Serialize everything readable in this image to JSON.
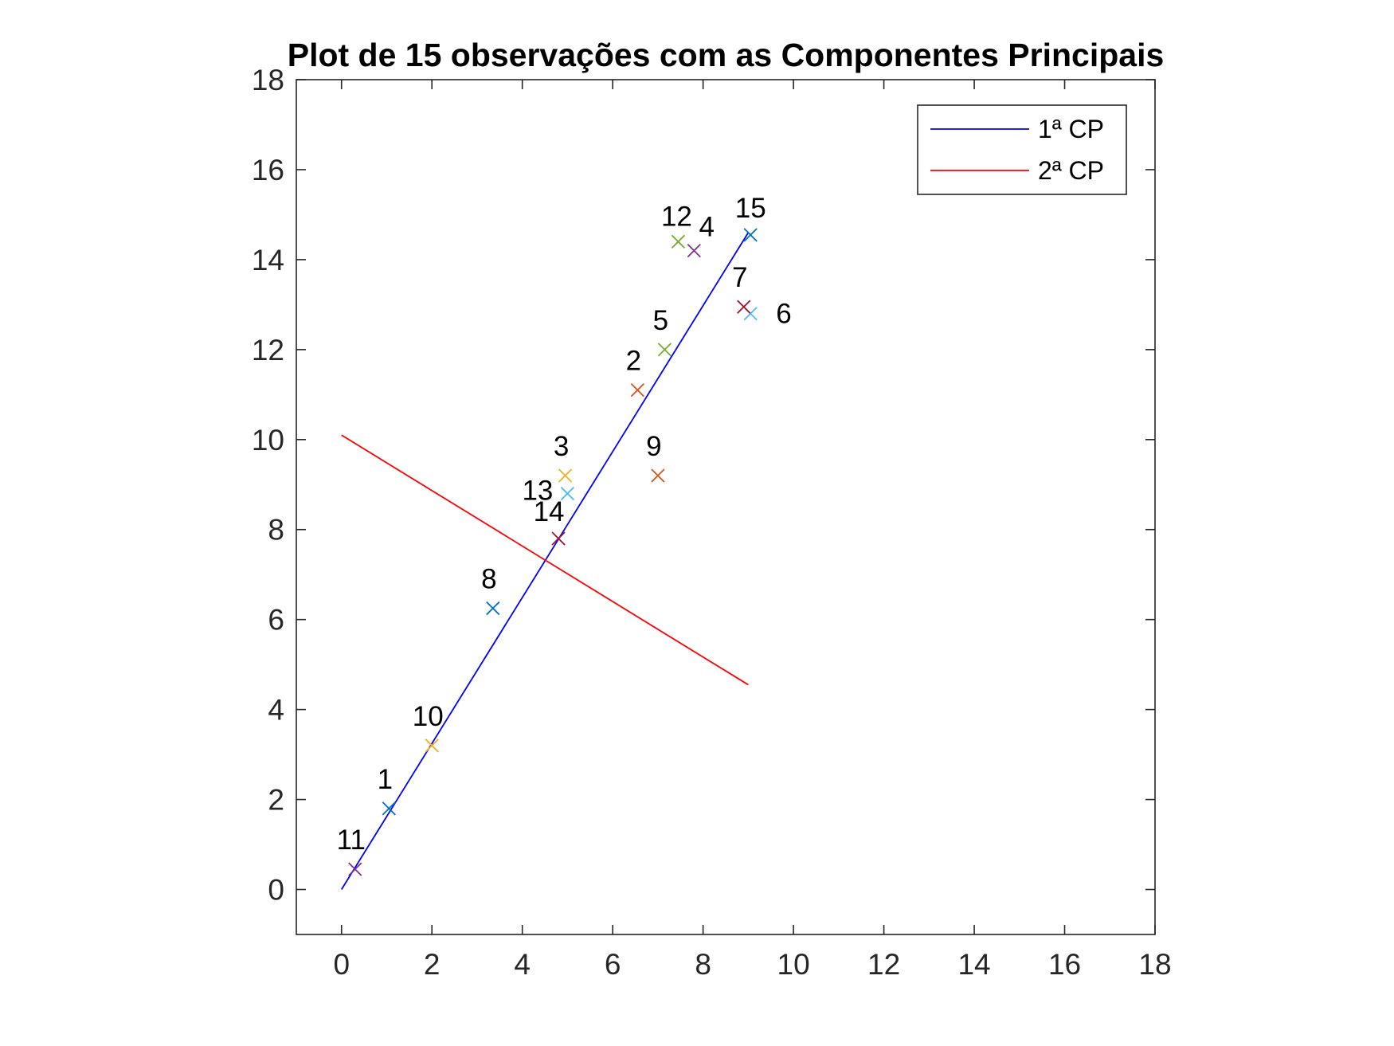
{
  "chart_data": {
    "type": "scatter",
    "title": "Plot de 15 observações com as Componentes Principais",
    "xlabel": "",
    "ylabel": "",
    "xlim": [
      -1,
      18
    ],
    "ylim": [
      -1,
      18
    ],
    "x_ticks": [
      "0",
      "2",
      "4",
      "6",
      "8",
      "10",
      "12",
      "14",
      "16",
      "18"
    ],
    "y_ticks": [
      "0",
      "2",
      "4",
      "6",
      "8",
      "10",
      "12",
      "14",
      "16",
      "18"
    ],
    "grid": false,
    "legend_position": "top-right",
    "points": [
      {
        "label": "1",
        "x": 1.05,
        "y": 1.8,
        "color": "#0072BD"
      },
      {
        "label": "2",
        "x": 6.55,
        "y": 11.1,
        "color": "#D95319"
      },
      {
        "label": "3",
        "x": 4.95,
        "y": 9.2,
        "color": "#EDB120"
      },
      {
        "label": "4",
        "x": 7.8,
        "y": 14.2,
        "color": "#7E2F8E"
      },
      {
        "label": "5",
        "x": 7.15,
        "y": 12.0,
        "color": "#77AC30"
      },
      {
        "label": "6",
        "x": 9.05,
        "y": 12.8,
        "color": "#4DBEEE"
      },
      {
        "label": "7",
        "x": 8.9,
        "y": 12.95,
        "color": "#A2142F"
      },
      {
        "label": "8",
        "x": 3.35,
        "y": 6.25,
        "color": "#0072BD"
      },
      {
        "label": "9",
        "x": 7.0,
        "y": 9.2,
        "color": "#D95319"
      },
      {
        "label": "10",
        "x": 2.0,
        "y": 3.2,
        "color": "#EDB120"
      },
      {
        "label": "11",
        "x": 0.3,
        "y": 0.45,
        "color": "#7E2F8E"
      },
      {
        "label": "12",
        "x": 7.45,
        "y": 14.4,
        "color": "#77AC30"
      },
      {
        "label": "13",
        "x": 5.0,
        "y": 8.8,
        "color": "#4DBEEE"
      },
      {
        "label": "14",
        "x": 4.8,
        "y": 7.8,
        "color": "#A2142F"
      },
      {
        "label": "15",
        "x": 9.05,
        "y": 14.55,
        "color": "#0072BD"
      }
    ],
    "series": [
      {
        "name": "1ª CP",
        "color": "#0000FF",
        "x": [
          0,
          9.0
        ],
        "y": [
          0,
          14.6
        ]
      },
      {
        "name": "2ª CP",
        "color": "#FF0000",
        "x": [
          0,
          9.0
        ],
        "y": [
          10.1,
          4.55
        ]
      }
    ]
  }
}
